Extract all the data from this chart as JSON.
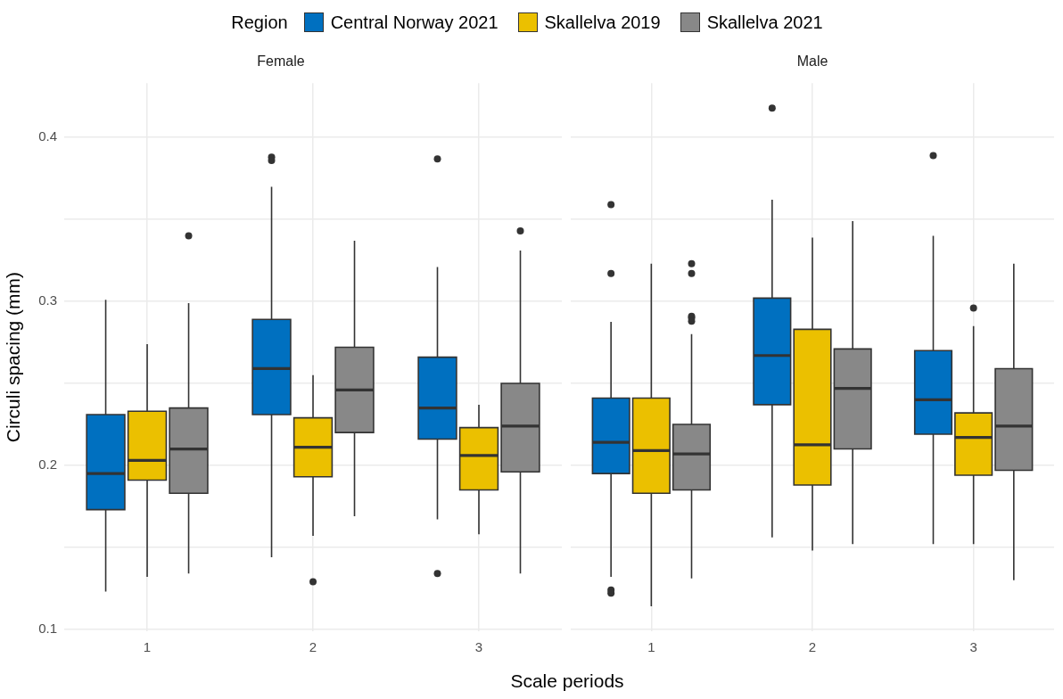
{
  "chart_data": [
    {
      "type": "box",
      "title": "Female",
      "xlabel": "Scale periods",
      "ylabel": "Circuli spacing (mm)",
      "legend_title": "Region",
      "legend": "top",
      "grid": true,
      "categories": [
        "1",
        "2",
        "3"
      ],
      "ylim": [
        0.0988,
        0.4332
      ],
      "yticks": [
        0.1,
        {
          "value": 0.15,
          "label": null
        },
        0.2,
        {
          "value": 0.25,
          "label": null
        },
        0.3,
        {
          "value": 0.35,
          "label": null
        },
        0.4
      ],
      "series": [
        {
          "name": "Central Norway 2021",
          "color": "#0070c0",
          "boxes": [
            {
              "low": 0.123,
              "q1": 0.173,
              "median": 0.195,
              "q3": 0.231,
              "high": 0.301
            },
            {
              "low": 0.144,
              "q1": 0.231,
              "median": 0.259,
              "q3": 0.289,
              "high": 0.37,
              "outliers": [
                0.388,
                0.386
              ]
            },
            {
              "low": 0.167,
              "q1": 0.216,
              "median": 0.235,
              "q3": 0.266,
              "high": 0.321,
              "outliers": [
                0.387,
                0.134
              ]
            }
          ]
        },
        {
          "name": "Skallelva 2019",
          "color": "#ebc000",
          "boxes": [
            {
              "low": 0.132,
              "q1": 0.191,
              "median": 0.203,
              "q3": 0.233,
              "high": 0.274
            },
            {
              "low": 0.157,
              "q1": 0.193,
              "median": 0.211,
              "q3": 0.229,
              "high": 0.255,
              "outliers": [
                0.129
              ]
            },
            {
              "low": 0.158,
              "q1": 0.185,
              "median": 0.206,
              "q3": 0.223,
              "high": 0.237
            }
          ]
        },
        {
          "name": "Skallelva 2021",
          "color": "#888888",
          "boxes": [
            {
              "low": 0.134,
              "q1": 0.183,
              "median": 0.21,
              "q3": 0.235,
              "high": 0.299,
              "outliers": [
                0.34
              ]
            },
            {
              "low": 0.169,
              "q1": 0.22,
              "median": 0.246,
              "q3": 0.272,
              "high": 0.337
            },
            {
              "low": 0.134,
              "q1": 0.196,
              "median": 0.224,
              "q3": 0.25,
              "high": 0.331,
              "outliers": [
                0.343
              ]
            }
          ]
        }
      ]
    },
    {
      "type": "box",
      "title": "Male",
      "grid": true,
      "tick_labels": "x",
      "categories": [
        "1",
        "2",
        "3"
      ],
      "ylim": [
        0.0988,
        0.4332
      ],
      "yticks": [
        0.1,
        {
          "value": 0.15,
          "label": null
        },
        0.2,
        {
          "value": 0.25,
          "label": null
        },
        0.3,
        {
          "value": 0.35,
          "label": null
        },
        0.4
      ],
      "series": [
        {
          "color": "#0070c0",
          "boxes": [
            {
              "low": 0.132,
              "q1": 0.195,
              "median": 0.214,
              "q3": 0.241,
              "high": 0.2875,
              "outliers": [
                0.359,
                0.317,
                0.124,
                0.122
              ]
            },
            {
              "low": 0.156,
              "q1": 0.237,
              "median": 0.267,
              "q3": 0.302,
              "high": 0.362,
              "outliers": [
                0.418
              ]
            },
            {
              "low": 0.152,
              "q1": 0.219,
              "median": 0.24,
              "q3": 0.27,
              "high": 0.34,
              "outliers": [
                0.389
              ]
            }
          ]
        },
        {
          "color": "#ebc000",
          "boxes": [
            {
              "low": 0.114,
              "q1": 0.183,
              "median": 0.209,
              "q3": 0.241,
              "high": 0.323
            },
            {
              "low": 0.148,
              "q1": 0.188,
              "median": 0.2125,
              "q3": 0.283,
              "high": 0.339
            },
            {
              "low": 0.152,
              "q1": 0.194,
              "median": 0.217,
              "q3": 0.232,
              "high": 0.285,
              "outliers": [
                0.296
              ]
            }
          ]
        },
        {
          "color": "#888888",
          "boxes": [
            {
              "low": 0.131,
              "q1": 0.185,
              "median": 0.207,
              "q3": 0.225,
              "high": 0.28,
              "outliers": [
                0.323,
                0.317,
                0.291,
                0.29,
                0.288
              ]
            },
            {
              "low": 0.152,
              "q1": 0.21,
              "median": 0.247,
              "q3": 0.271,
              "high": 0.349
            },
            {
              "low": 0.13,
              "q1": 0.197,
              "median": 0.224,
              "q3": 0.259,
              "high": 0.323
            }
          ]
        }
      ]
    }
  ]
}
